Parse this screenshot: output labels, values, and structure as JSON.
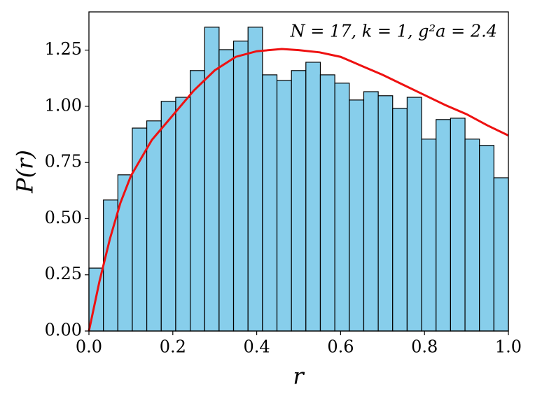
{
  "chart_data": {
    "type": "histogram",
    "xlabel": "r",
    "ylabel": "P(r)",
    "annotation": "N = 17, k = 1, g²a = 2.4",
    "bins": [
      0,
      0.0345,
      0.069,
      0.1034,
      0.1379,
      0.1724,
      0.2069,
      0.2414,
      0.2759,
      0.3103,
      0.3448,
      0.3793,
      0.4138,
      0.4483,
      0.4828,
      0.5172,
      0.5517,
      0.5862,
      0.6207,
      0.6552,
      0.6897,
      0.7241,
      0.7586,
      0.7931,
      0.8276,
      0.8621,
      0.8966,
      0.931,
      0.9655,
      1
    ],
    "values": [
      0.28,
      0.583,
      0.695,
      0.903,
      0.935,
      1.022,
      1.04,
      1.159,
      1.352,
      1.252,
      1.29,
      1.352,
      1.14,
      1.115,
      1.159,
      1.196,
      1.14,
      1.103,
      1.028,
      1.065,
      1.047,
      0.991,
      1.04,
      0.854,
      0.941,
      0.947,
      0.854,
      0.826,
      0.682
    ],
    "color": "#87ceeb",
    "edgecolor": "#000000",
    "curve": {
      "color": "#ee1111",
      "x": [
        0,
        0.025,
        0.05,
        0.075,
        0.1,
        0.15,
        0.2,
        0.25,
        0.3,
        0.35,
        0.4,
        0.46,
        0.5,
        0.55,
        0.6,
        0.65,
        0.7,
        0.75,
        0.8,
        0.85,
        0.9,
        0.95,
        1
      ],
      "values": [
        0,
        0.22,
        0.41,
        0.57,
        0.69,
        0.85,
        0.96,
        1.07,
        1.16,
        1.22,
        1.245,
        1.255,
        1.25,
        1.24,
        1.22,
        1.18,
        1.14,
        1.095,
        1.05,
        1.005,
        0.965,
        0.915,
        0.87
      ]
    },
    "xlim": [
      0,
      1
    ],
    "ylim": [
      0,
      1.42
    ],
    "xticks": [
      {
        "value": 0,
        "label": "0.0"
      },
      0.2,
      0.4,
      0.6,
      0.8,
      {
        "value": 1,
        "label": "1.0"
      }
    ],
    "yticks": [
      {
        "value": 0,
        "label": "0.00"
      },
      0.25,
      {
        "value": 0.5,
        "label": "0.50"
      },
      0.75,
      {
        "value": 1,
        "label": "1.00"
      },
      1.25
    ]
  }
}
